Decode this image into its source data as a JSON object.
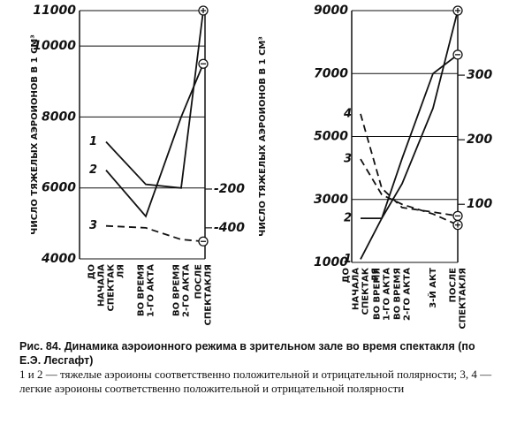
{
  "chart_data": [
    {
      "type": "line",
      "ylabel": "ЧИСЛО ТЯЖЕЛЫХ АЭРОИОНОВ В 1 СМ³",
      "categories": [
        "ДО\nНАЧАЛА\nСПЕКТАК\nЛЯ",
        "ВО ВРЕМЯ\n1-ГО АКТА",
        "ВО ВРЕМЯ\n2-ГО АКТА",
        "ПОСЛЕ\nСПЕКТАКЛЯ"
      ],
      "series": [
        {
          "name": "1",
          "color": "#111",
          "dash": false,
          "marker": "plus",
          "values": [
            7300,
            6100,
            6000,
            11000
          ]
        },
        {
          "name": "2",
          "color": "#111",
          "dash": false,
          "marker": "minus",
          "values": [
            6500,
            5200,
            8000,
            9500
          ]
        },
        {
          "name": "3",
          "color": "#111",
          "dash": true,
          "marker": "minus",
          "axis": "y2",
          "values": [
            -390,
            -400,
            -460,
            -470
          ]
        }
      ],
      "ylim": [
        4000,
        11000
      ],
      "yticks": [
        4000,
        6000,
        8000,
        10000,
        11000
      ],
      "y2lim": [
        -560,
        720
      ],
      "y2ticks": [
        -200,
        -400
      ],
      "grid": true
    },
    {
      "type": "line",
      "ylabel": "ЧИСЛО ТЯЖЕЛЫХ АЭРОИОНОВ В 1 СМ³",
      "categories": [
        "ДО\nНАЧАЛА\nСПЕКТАК\nЛЯ",
        "ВО ВРЕМЯ\n1-ГО АКТА",
        "ВО ВРЕМЯ\n2-ГО АКТА",
        "3-Й АКТ",
        "ПОСЛЕ\nСПЕКТАКЛЯ"
      ],
      "series": [
        {
          "name": "1",
          "color": "#111",
          "dash": false,
          "marker": "plus",
          "values": [
            1100,
            2400,
            3500,
            5900,
            9000
          ]
        },
        {
          "name": "2",
          "color": "#111",
          "dash": false,
          "marker": "minus",
          "values": [
            2400,
            2400,
            4300,
            7000,
            7600
          ]
        },
        {
          "name": "3",
          "color": "#111",
          "dash": true,
          "marker": "plus",
          "axis": "y2",
          "values": [
            170,
            115,
            100,
            85,
            68
          ]
        },
        {
          "name": "4",
          "color": "#111",
          "dash": true,
          "marker": "minus",
          "axis": "y2",
          "values": [
            240,
            125,
            95,
            88,
            82
          ]
        }
      ],
      "ylim": [
        1000,
        9000
      ],
      "yticks": [
        1000,
        3000,
        5000,
        7000,
        9000
      ],
      "y2lim": [
        10,
        400
      ],
      "y2ticks": [
        100,
        200,
        300
      ],
      "grid": true
    }
  ],
  "caption": {
    "title": "Рис. 84. Динамика аэроионного режима в зрительном зале во время спектакля (по Е.Э. Лесгафт)",
    "text": "1 и 2 — тяжелые аэроионы соответственно положительной и отрицательной полярности; 3, 4 — легкие аэроионы соответственно положительной и отрицательной полярности"
  }
}
